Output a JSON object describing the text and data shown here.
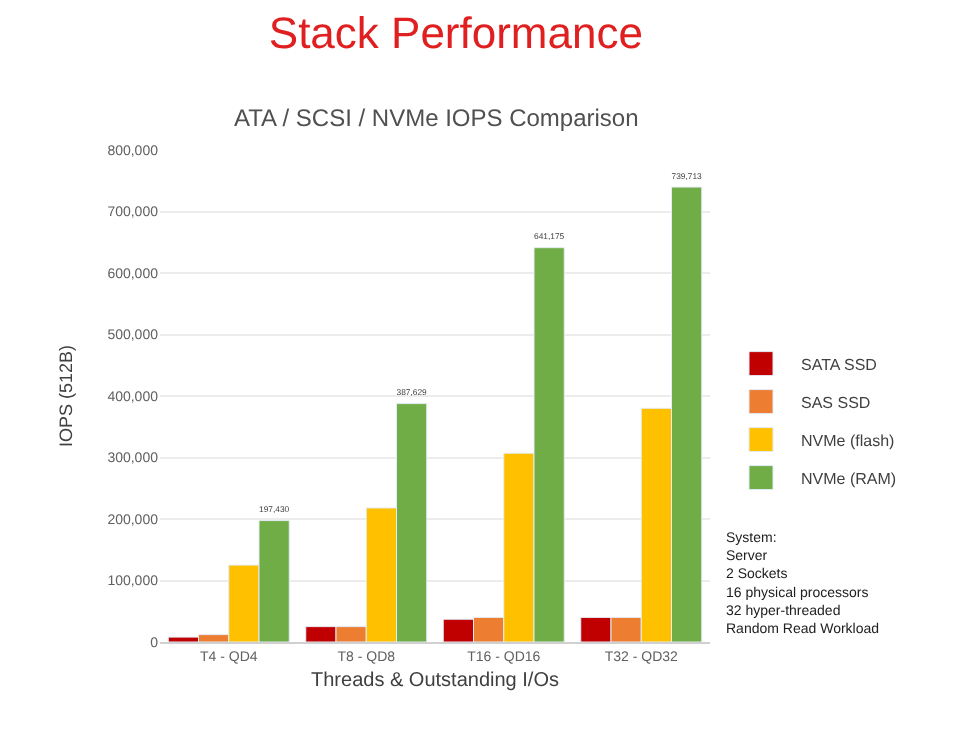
{
  "chart_data": {
    "type": "bar",
    "title": "Stack Performance",
    "subtitle": "ATA / SCSI / NVMe IOPS Comparison",
    "xlabel": "Threads & Outstanding I/Os",
    "ylabel": "IOPS (512B)",
    "categories": [
      "T4 - QD4",
      "T8 - QD8",
      "T16 - QD16",
      "T32 - QD32"
    ],
    "series": [
      {
        "name": "SATA SSD",
        "color": "#c00000",
        "values": [
          8000,
          25000,
          37000,
          40000
        ]
      },
      {
        "name": "SAS SSD",
        "color": "#ed7d31",
        "values": [
          12000,
          25000,
          40000,
          40000
        ]
      },
      {
        "name": "NVMe (flash)",
        "color": "#ffc000",
        "values": [
          125000,
          218000,
          307000,
          380000
        ]
      },
      {
        "name": "NVMe (RAM)",
        "color": "#70ad47",
        "values": [
          197430,
          387629,
          641175,
          739713
        ],
        "value_labels": [
          "197,430",
          "387,629",
          "641,175",
          "739,713"
        ]
      }
    ],
    "ylim": [
      0,
      800000
    ],
    "yticks": [
      0,
      {
        "value": 100000,
        "label": "100,000"
      },
      {
        "value": 200000,
        "label": "200,000"
      },
      {
        "value": 300000,
        "label": "300,000"
      },
      {
        "value": 400000,
        "label": "400,000"
      },
      {
        "value": 500000,
        "label": "500,000"
      },
      {
        "value": 600000,
        "label": "600,000"
      },
      {
        "value": 700000,
        "label": "700,000"
      },
      {
        "value": 800000,
        "label": "800,000"
      }
    ],
    "grid": "y",
    "legend": "right",
    "annotations": [
      "System:\nServer\n2 Sockets\n16 physical processors\n32 hyper-threaded\nRandom Read Workload"
    ]
  }
}
